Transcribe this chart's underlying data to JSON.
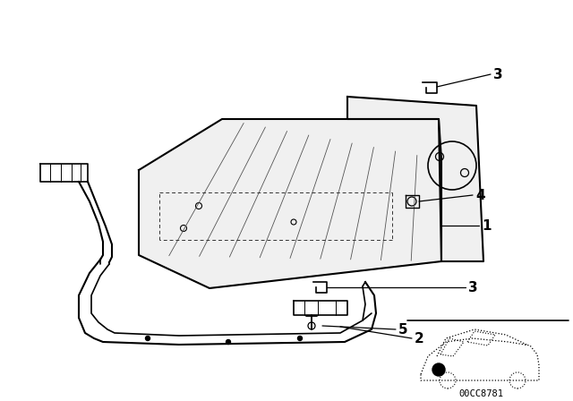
{
  "background_color": "#ffffff",
  "line_color": "#000000",
  "diagram_id": "00CC8781",
  "font_size": 11,
  "plate_fill": "#f0f0f0"
}
